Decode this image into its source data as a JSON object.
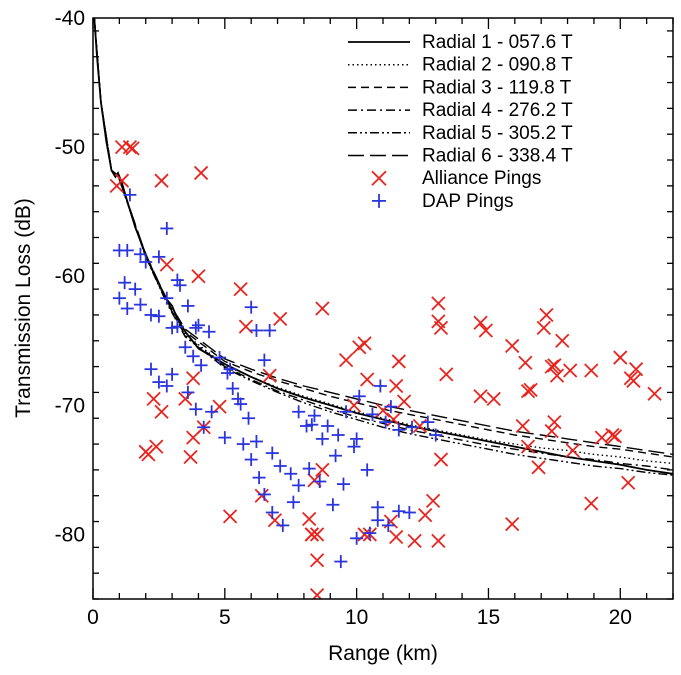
{
  "chart_data": {
    "type": "scatter",
    "title": "",
    "xlabel": "Range (km)",
    "ylabel": "Transmission Loss (dB)",
    "xlim": [
      0,
      22
    ],
    "ylim": [
      -85,
      -40
    ],
    "xticks": [
      0,
      5,
      10,
      15,
      20
    ],
    "xtick_labels": [
      "0",
      "5",
      "10",
      "15",
      "20"
    ],
    "yticks": [
      -80,
      -70,
      -60,
      -50,
      -40
    ],
    "ytick_labels": [
      "-80",
      "-70",
      "-60",
      "-50",
      "-40"
    ],
    "legend_position": "top-right",
    "grid": false,
    "series": [
      {
        "name": "Radial 1 - 057.6 T",
        "type": "line",
        "dash": "solid",
        "color": "#000000",
        "x": [
          0.05,
          0.15,
          0.3,
          0.5,
          0.7,
          0.85,
          0.95,
          1.1,
          1.3,
          1.6,
          2.0,
          2.4,
          2.8,
          3.0,
          3.2,
          3.5,
          4,
          5,
          6,
          7,
          8,
          9,
          10,
          11,
          12,
          13,
          14,
          15,
          16,
          17,
          18,
          19,
          20,
          21,
          22
        ],
        "y": [
          -40,
          -43,
          -46.5,
          -49.5,
          -51.8,
          -52.3,
          -52.0,
          -52.8,
          -54.2,
          -56.2,
          -58.3,
          -60.2,
          -61.8,
          -62.3,
          -63.3,
          -64.3,
          -65.6,
          -66.8,
          -67.8,
          -68.7,
          -69.4,
          -70.0,
          -70.6,
          -71.1,
          -71.6,
          -72.0,
          -72.4,
          -72.8,
          -73.2,
          -73.6,
          -74.0,
          -74.3,
          -74.6,
          -75.0,
          -75.3
        ]
      },
      {
        "name": "Radial 2 - 090.8 T",
        "type": "line",
        "dash": "dotted",
        "color": "#000000",
        "x": [
          0.05,
          0.3,
          0.7,
          0.95,
          1.3,
          2.0,
          2.8,
          3.5,
          5,
          6,
          7,
          8,
          9,
          10,
          11,
          12,
          13,
          14,
          15,
          16,
          17,
          18,
          19,
          20,
          21,
          22
        ],
        "y": [
          -40,
          -46.5,
          -51.8,
          -52.2,
          -54.3,
          -58.5,
          -62.0,
          -64.5,
          -66.9,
          -67.8,
          -68.6,
          -69.3,
          -69.9,
          -70.5,
          -71.0,
          -71.5,
          -71.9,
          -72.3,
          -72.7,
          -73.0,
          -73.3,
          -73.5,
          -73.8,
          -74.0,
          -74.3,
          -74.5
        ]
      },
      {
        "name": "Radial 3 - 119.8 T",
        "type": "line",
        "dash": "dashed",
        "color": "#000000",
        "x": [
          0.05,
          0.3,
          0.7,
          0.95,
          1.3,
          2.0,
          2.8,
          3.5,
          5,
          6,
          7,
          8,
          9,
          10,
          11,
          12,
          13,
          14,
          15,
          16,
          17,
          18,
          19,
          20,
          21,
          22
        ],
        "y": [
          -40,
          -46.5,
          -51.8,
          -52.2,
          -54.2,
          -58.4,
          -61.9,
          -64.3,
          -66.6,
          -67.4,
          -68.1,
          -68.7,
          -69.3,
          -69.8,
          -70.3,
          -70.7,
          -71.1,
          -71.5,
          -71.9,
          -72.3,
          -72.6,
          -72.9,
          -73.2,
          -73.4,
          -73.7,
          -74.0
        ]
      },
      {
        "name": "Radial 4 - 276.2 T",
        "type": "line",
        "dash": "dashdot",
        "color": "#000000",
        "x": [
          0.05,
          0.3,
          0.7,
          0.95,
          1.3,
          2.0,
          2.8,
          3.5,
          5,
          6,
          7,
          8,
          9,
          10,
          11,
          12,
          13,
          14,
          15,
          16,
          17,
          18,
          19,
          20,
          21,
          22
        ],
        "y": [
          -40,
          -46.5,
          -51.8,
          -52.2,
          -54.3,
          -58.5,
          -62.0,
          -64.6,
          -67.0,
          -68.0,
          -68.9,
          -69.6,
          -70.3,
          -70.9,
          -71.4,
          -71.9,
          -72.3,
          -72.7,
          -73.1,
          -73.4,
          -73.7,
          -74.0,
          -74.2,
          -74.5,
          -74.7,
          -75.0
        ]
      },
      {
        "name": "Radial 5 - 305.2 T",
        "type": "line",
        "dash": "dashdotdot",
        "color": "#000000",
        "x": [
          0.05,
          0.3,
          0.7,
          0.95,
          1.3,
          2.0,
          2.8,
          3.5,
          5,
          6,
          7,
          8,
          9,
          10,
          11,
          12,
          13,
          14,
          15,
          16,
          17,
          18,
          19,
          20,
          21,
          22
        ],
        "y": [
          -40,
          -46.5,
          -51.8,
          -52.2,
          -54.3,
          -58.5,
          -62.1,
          -64.7,
          -67.1,
          -68.1,
          -69.0,
          -69.8,
          -70.5,
          -71.1,
          -71.7,
          -72.2,
          -72.6,
          -73.0,
          -73.4,
          -73.8,
          -74.1,
          -74.4,
          -74.7,
          -74.9,
          -75.2,
          -75.4
        ]
      },
      {
        "name": "Radial 6 - 338.4 T",
        "type": "line",
        "dash": "longdash",
        "color": "#000000",
        "x": [
          0.05,
          0.3,
          0.7,
          0.95,
          1.3,
          2.0,
          2.8,
          3.5,
          5,
          6,
          7,
          8,
          9,
          10,
          11,
          12,
          13,
          14,
          15,
          16,
          17,
          18,
          19,
          20,
          21,
          22
        ],
        "y": [
          -40,
          -46.5,
          -51.8,
          -52.2,
          -54.2,
          -58.3,
          -61.8,
          -64.1,
          -66.4,
          -67.2,
          -67.9,
          -68.5,
          -69.0,
          -69.5,
          -70.0,
          -70.4,
          -70.8,
          -71.2,
          -71.6,
          -72.0,
          -72.3,
          -72.6,
          -72.9,
          -73.2,
          -73.5,
          -73.8
        ]
      },
      {
        "name": "Alliance Pings",
        "type": "scatter",
        "marker": "x",
        "color": "#e8251f",
        "x": [
          1.1,
          1.4,
          1.5,
          1.1,
          2.6,
          4.1,
          0.9,
          2.8,
          4.0,
          5.6,
          5.8,
          7.1,
          8.7,
          6.7,
          2.3,
          3.5,
          2.6,
          3.8,
          4.2,
          4.8,
          2.4,
          3.8,
          3.7,
          2.1,
          2.0,
          5.2,
          6.4,
          6.9,
          8.2,
          8.4,
          8.7,
          9.6,
          9.9,
          10.1,
          10.3,
          10.4,
          11.0,
          11.4,
          11.5,
          11.6,
          11.8,
          12.4,
          13.1,
          13.2,
          13.4,
          13.1,
          13.2,
          12.9,
          14.7,
          14.9,
          14.7,
          15.2,
          15.9,
          16.4,
          16.5,
          16.3,
          16.6,
          16.9,
          17.1,
          17.2,
          17.4,
          17.6,
          17.5,
          17.8,
          18.1,
          18.9,
          19.7,
          20.0,
          20.4,
          20.6,
          20.5,
          21.3,
          17.4,
          18.2,
          19.3,
          19.8,
          20.3,
          18.9,
          15.9,
          16.5,
          17.5,
          11.3,
          8.3,
          8.5,
          8.5,
          8.3,
          8.5,
          12.2,
          11.5,
          10.5,
          10.3,
          13.1,
          12.6
        ],
        "y": [
          -50.0,
          -50.0,
          -50.1,
          -52.6,
          -52.6,
          -52.0,
          -53.0,
          -59.1,
          -60.0,
          -61.0,
          -63.9,
          -63.3,
          -62.5,
          -67.7,
          -69.5,
          -69.5,
          -70.5,
          -67.9,
          -71.7,
          -70.1,
          -73.2,
          -72.5,
          -74.0,
          -73.8,
          -73.6,
          -78.6,
          -77.0,
          -78.9,
          -78.8,
          -75.8,
          -75.0,
          -66.5,
          -70.0,
          -65.5,
          -65.2,
          -68.0,
          -70.4,
          -71.1,
          -68.5,
          -66.6,
          -69.7,
          -71.6,
          -63.5,
          -74.2,
          -67.6,
          -62.1,
          -64.0,
          -77.4,
          -63.6,
          -64.2,
          -69.3,
          -69.5,
          -65.4,
          -66.7,
          -68.9,
          -71.6,
          -68.8,
          -74.8,
          -64.0,
          -63.0,
          -67.0,
          -67.7,
          -66.9,
          -65.0,
          -67.3,
          -67.3,
          -72.3,
          -66.3,
          -67.9,
          -67.2,
          -68.1,
          -69.1,
          -72.0,
          -73.5,
          -72.5,
          -72.4,
          -76.0,
          -77.6,
          -79.2,
          -73.2,
          -71.3,
          -79.0,
          -80.0,
          -82.0,
          -84.7,
          -80.0,
          -80.0,
          -80.5,
          -80.2,
          -80.0,
          -80.0,
          -80.5,
          -78.5
        ]
      },
      {
        "name": "DAP Pings",
        "type": "scatter",
        "marker": "+",
        "color": "#2b35dd",
        "x": [
          1.4,
          2.8,
          1.0,
          1.3,
          1.8,
          2.0,
          2.5,
          3.2,
          1.2,
          1.0,
          1.3,
          1.6,
          1.8,
          2.2,
          2.5,
          2.8,
          3.0,
          3.2,
          3.3,
          3.6,
          3.9,
          2.2,
          2.5,
          2.8,
          3.0,
          3.5,
          3.8,
          4.1,
          3.6,
          3.9,
          4.2,
          4.5,
          5.0,
          5.2,
          5.5,
          6.0,
          6.2,
          6.5,
          6.7,
          4.0,
          4.4,
          4.8,
          5.1,
          5.3,
          5.6,
          5.9,
          6.2,
          6.8,
          7.1,
          7.5,
          7.8,
          8.2,
          8.6,
          9.1,
          9.5,
          10.0,
          10.4,
          10.8,
          5.7,
          6.0,
          6.3,
          6.5,
          6.8,
          7.2,
          7.6,
          8.1,
          8.4,
          8.7,
          9.2,
          9.6,
          10.1,
          10.6,
          11.1,
          11.6,
          12.1,
          12.7,
          13.0,
          9.4,
          10.0,
          10.5,
          10.8,
          11.2,
          11.6,
          12.0,
          10.9,
          11.3,
          7.8,
          8.3,
          8.9,
          9.3,
          9.9
        ],
        "y": [
          -53.7,
          -56.3,
          -58.0,
          -58.0,
          -58.3,
          -58.9,
          -58.5,
          -60.3,
          -60.5,
          -61.7,
          -62.5,
          -61.0,
          -62.2,
          -63.0,
          -63.1,
          -61.7,
          -64.0,
          -63.9,
          -60.7,
          -62.3,
          -64.0,
          -67.2,
          -68.2,
          -68.5,
          -67.6,
          -65.5,
          -66.2,
          -66.9,
          -69.0,
          -70.3,
          -71.7,
          -70.5,
          -72.5,
          -67.2,
          -69.5,
          -62.4,
          -64.2,
          -66.5,
          -64.2,
          -63.8,
          -64.3,
          -66.3,
          -67.5,
          -68.7,
          -69.9,
          -71.0,
          -72.8,
          -73.7,
          -74.7,
          -75.3,
          -76.2,
          -74.9,
          -75.9,
          -77.7,
          -76.1,
          -72.6,
          -75.0,
          -77.9,
          -73.0,
          -74.2,
          -75.6,
          -76.9,
          -78.3,
          -79.3,
          -77.5,
          -71.6,
          -70.8,
          -72.6,
          -73.9,
          -70.5,
          -69.3,
          -70.7,
          -71.3,
          -71.9,
          -71.7,
          -71.3,
          -72.3,
          -82.1,
          -80.3,
          -79.9,
          -78.9,
          -79.3,
          -78.2,
          -78.3,
          -68.5,
          -70.1,
          -70.5,
          -71.5,
          -71.6,
          -72.3,
          -73.2
        ]
      }
    ]
  }
}
